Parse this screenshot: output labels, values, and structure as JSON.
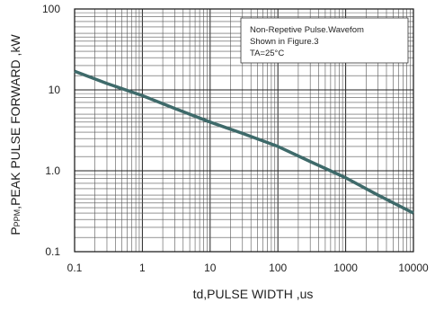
{
  "chart_data": {
    "type": "line",
    "xscale": "log",
    "yscale": "log",
    "xlim": [
      0.1,
      10000
    ],
    "ylim": [
      0.1,
      100
    ],
    "x_ticks": [
      "0.1",
      "1",
      "10",
      "100",
      "1000",
      "10000"
    ],
    "y_ticks": [
      "100",
      "10",
      "1.0",
      "0.1"
    ],
    "xlabel": "td,PULSE WIDTH ,us",
    "ylabel_main": "P",
    "ylabel_sub": "PPM",
    "ylabel_rest": ",PEAK PULSE  FORWARD ,kW",
    "grid": true,
    "annotation": [
      "Non-Repetive  Pulse.Wavefom",
      "Shown in Figure.3",
      "TA=25°C"
    ],
    "series": [
      {
        "color": "#3e6a6a",
        "x": [
          0.1,
          0.3,
          1,
          3,
          10,
          30,
          100,
          300,
          1000,
          3000,
          10000
        ],
        "y": [
          17,
          12,
          8.5,
          5.9,
          4.0,
          2.9,
          2.0,
          1.3,
          0.82,
          0.5,
          0.3
        ]
      }
    ]
  }
}
